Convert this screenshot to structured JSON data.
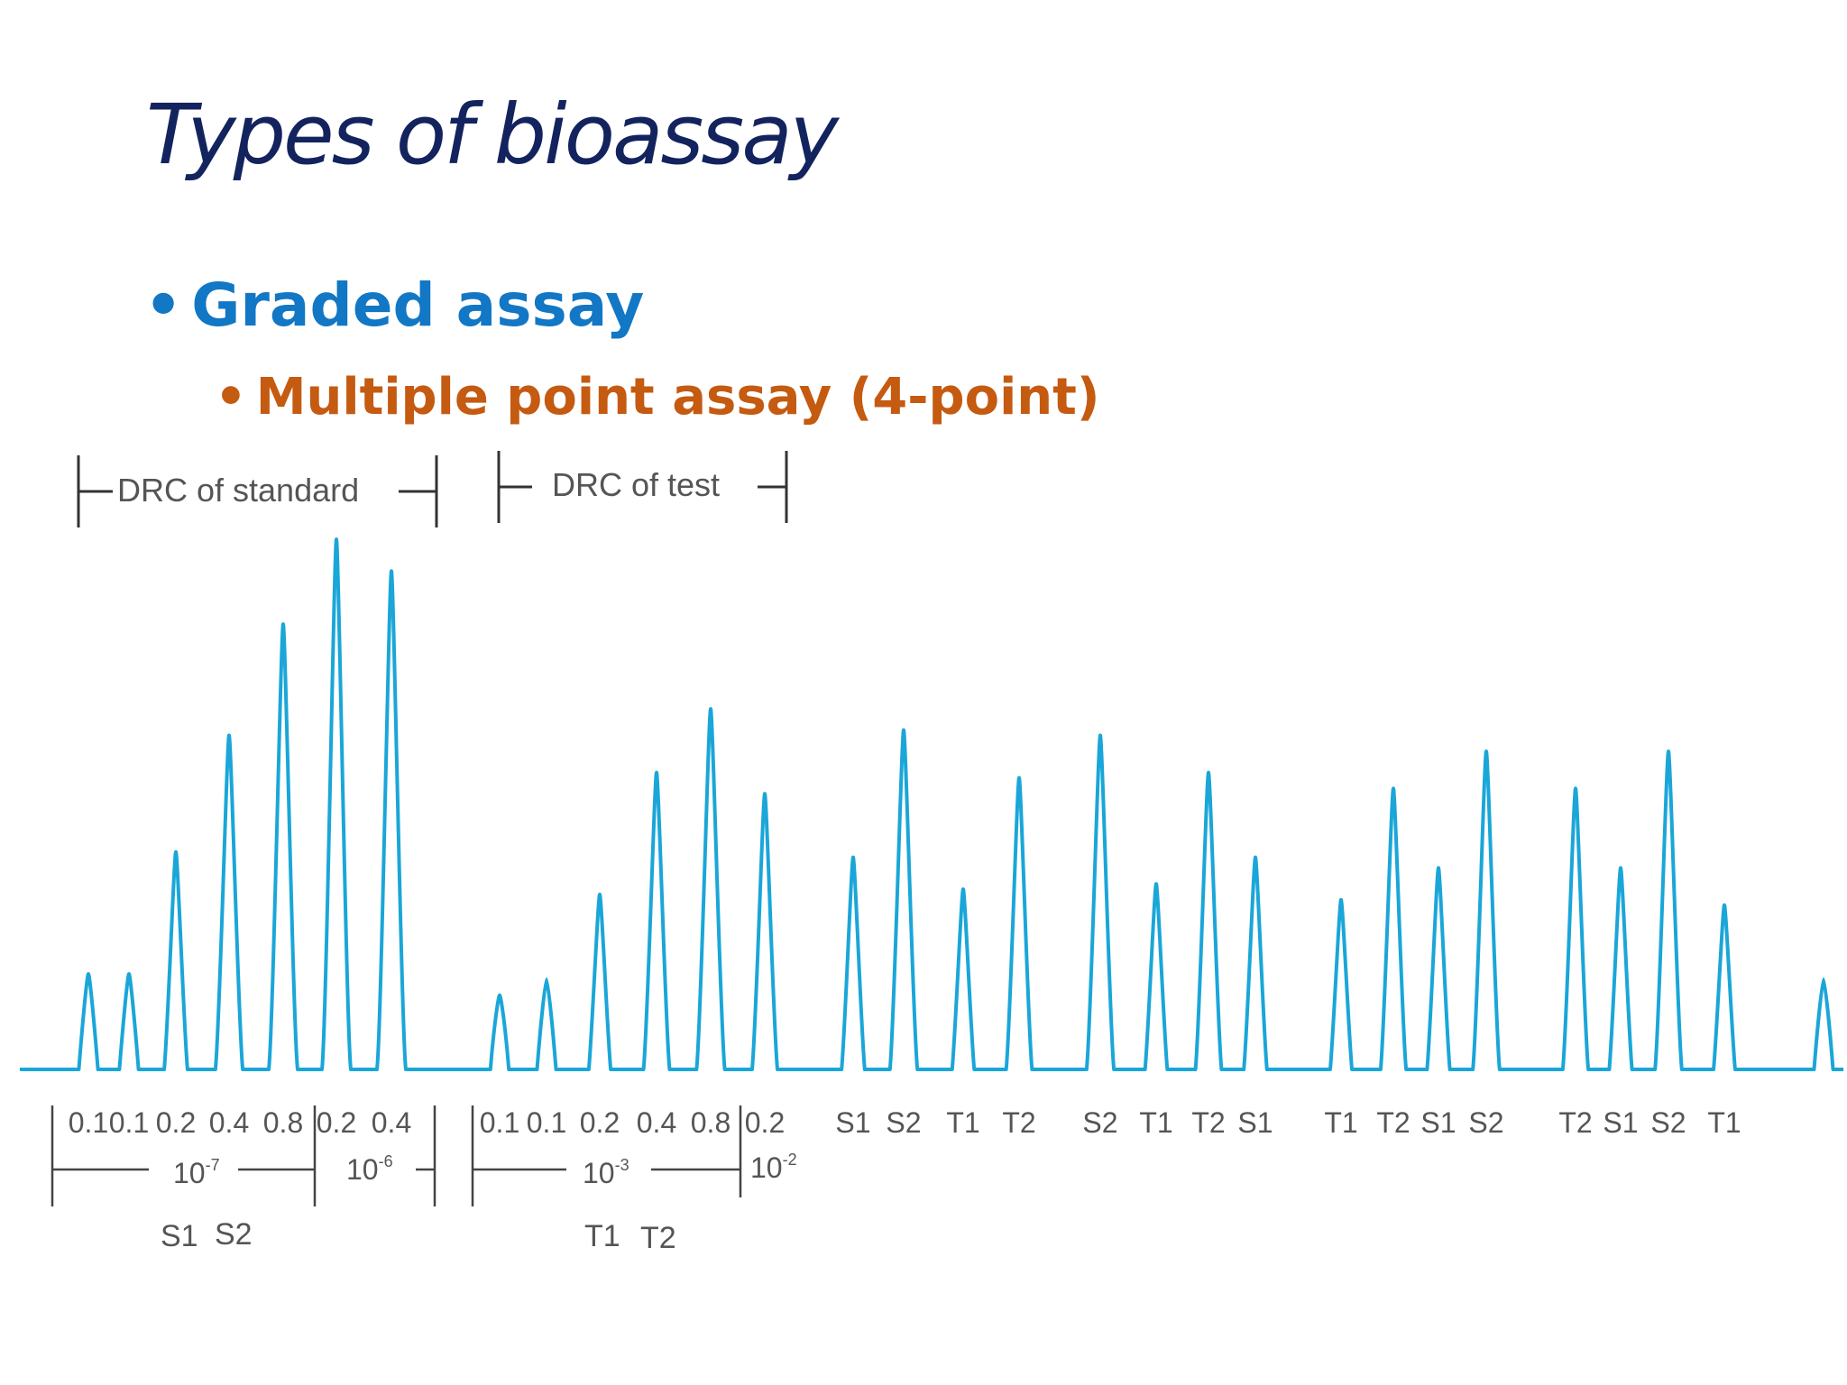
{
  "slide": {
    "title": "Types of bioassay",
    "bullet_1": "Graded assay",
    "bullet_2": "Multiple point assay (4-point)",
    "bullet_glyph": "•"
  },
  "colors": {
    "title": "#13235e",
    "bullet_1": "#1277c4",
    "bullet_2": "#c55a11",
    "trace": "#1aa6d8",
    "labels": "#555555"
  },
  "chart_data": {
    "type": "line",
    "brackets": [
      "DRC of standard",
      "DRC of test"
    ],
    "peaks": [
      {
        "label": "0.1",
        "height": 0.18
      },
      {
        "label": "0.1",
        "height": 0.18
      },
      {
        "label": "0.2",
        "height": 0.41
      },
      {
        "label": "0.4",
        "height": 0.63
      },
      {
        "label": "0.8",
        "height": 0.84
      },
      {
        "label": "0.2",
        "height": 1.0
      },
      {
        "label": "0.4",
        "height": 0.94
      },
      {
        "label": "0.1",
        "height": 0.14
      },
      {
        "label": "0.1",
        "height": 0.17
      },
      {
        "label": "0.2",
        "height": 0.33
      },
      {
        "label": "0.4",
        "height": 0.56
      },
      {
        "label": "0.8",
        "height": 0.68
      },
      {
        "label": "0.2",
        "height": 0.52
      },
      {
        "label": "S1",
        "height": 0.4
      },
      {
        "label": "S2",
        "height": 0.64
      },
      {
        "label": "T1",
        "height": 0.34
      },
      {
        "label": "T2",
        "height": 0.55
      },
      {
        "label": "S2",
        "height": 0.63
      },
      {
        "label": "T1",
        "height": 0.35
      },
      {
        "label": "T2",
        "height": 0.56
      },
      {
        "label": "S1",
        "height": 0.4
      },
      {
        "label": "T1",
        "height": 0.32
      },
      {
        "label": "T2",
        "height": 0.53
      },
      {
        "label": "S1",
        "height": 0.38
      },
      {
        "label": "S2",
        "height": 0.6
      },
      {
        "label": "T2",
        "height": 0.53
      },
      {
        "label": "S1",
        "height": 0.38
      },
      {
        "label": "S2",
        "height": 0.6
      },
      {
        "label": "T1",
        "height": 0.31
      },
      {
        "label": "",
        "height": 0.17
      }
    ],
    "concentration_labels": {
      "standard_low": {
        "base": "10",
        "exp": "-7"
      },
      "standard_high": {
        "base": "10",
        "exp": "-6"
      },
      "test_low": {
        "base": "10",
        "exp": "-3"
      },
      "test_high": {
        "base": "10",
        "exp": "-2"
      }
    },
    "group_labels": [
      "S1",
      "S2",
      "T1",
      "T2"
    ]
  }
}
